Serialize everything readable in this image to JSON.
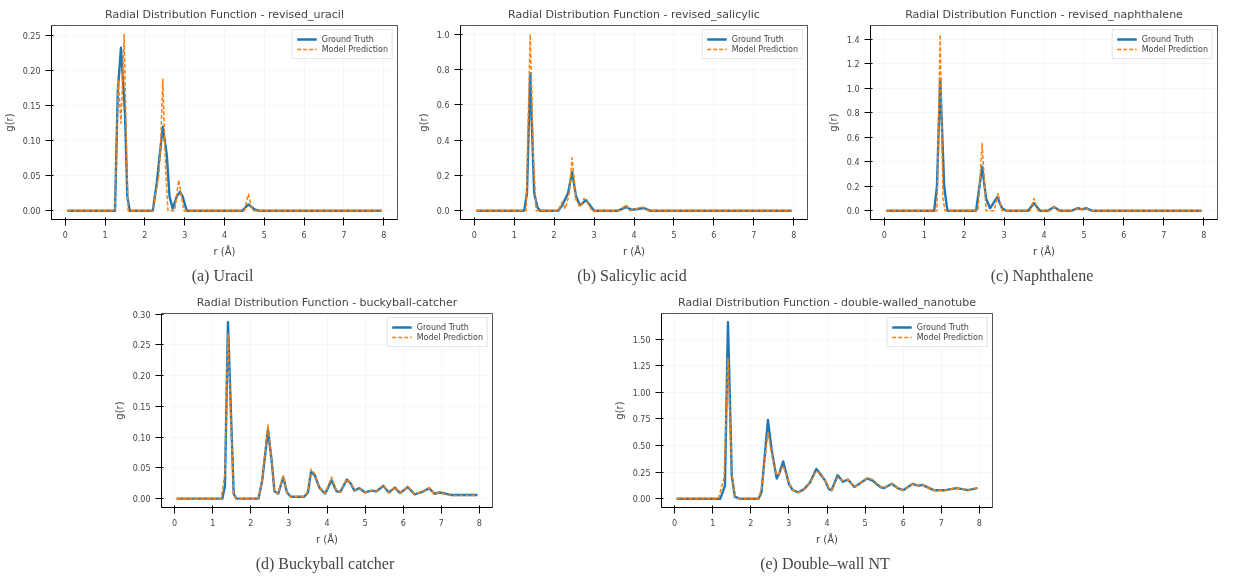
{
  "chart_data": [
    {
      "type": "line",
      "title": "Radial Distribution Function - revised_uracil",
      "xlabel": "r (Å)",
      "ylabel": "g(r)",
      "annotations": [
        "(a)  Uracil"
      ],
      "grid": true,
      "legend": "top right",
      "xlim": [
        -0.345,
        8.345
      ],
      "ylim": [
        -0.0126,
        0.2646
      ],
      "xticks": [
        0,
        1,
        2,
        3,
        4,
        5,
        6,
        7,
        8
      ],
      "yticks": [
        {
          "value": 0,
          "label": "0.00"
        },
        {
          "value": 0.05,
          "label": "0.05"
        },
        {
          "value": 0.1,
          "label": "0.10"
        },
        {
          "value": 0.15,
          "label": "0.15"
        },
        {
          "value": 0.2,
          "label": "0.20"
        },
        {
          "value": 0.25,
          "label": "0.25"
        }
      ],
      "series": [
        {
          "name": "Ground Truth",
          "color": "#1f77b4",
          "line_style": "solid",
          "x": [
            0.05,
            1.25,
            1.32,
            1.4,
            1.5,
            1.56,
            1.62,
            2.2,
            2.3,
            2.45,
            2.55,
            2.62,
            2.7,
            2.8,
            2.88,
            2.95,
            3.05,
            4.45,
            4.6,
            4.75,
            4.85,
            7.95
          ],
          "values": [
            0,
            0,
            0.17,
            0.233,
            0.14,
            0.02,
            0,
            0,
            0.04,
            0.12,
            0.08,
            0.02,
            0.003,
            0.02,
            0.027,
            0.02,
            0,
            0,
            0.009,
            0.002,
            0,
            0
          ]
        },
        {
          "name": "Model Prediction",
          "color": "#ff7f0e",
          "line_style": "dashed",
          "x": [
            0.05,
            1.25,
            1.33,
            1.4,
            1.48,
            1.54,
            1.58,
            2.2,
            2.35,
            2.4,
            2.45,
            2.52,
            2.58,
            2.75,
            2.85,
            2.92,
            2.98,
            4.5,
            4.6,
            4.7,
            7.95
          ],
          "values": [
            0,
            0,
            0.188,
            0.125,
            0.252,
            0.08,
            0,
            0,
            0.05,
            0.1,
            0.188,
            0.06,
            0,
            0,
            0.044,
            0.02,
            0,
            0,
            0.024,
            0,
            0
          ]
        }
      ]
    },
    {
      "type": "line",
      "title": "Radial Distribution Function - revised_salicylic",
      "xlabel": "r (Å)",
      "ylabel": "g(r)",
      "annotations": [
        "(b)  Salicylic acid"
      ],
      "grid": true,
      "legend": "top right",
      "xlim": [
        -0.345,
        8.345
      ],
      "ylim": [
        -0.05,
        1.05
      ],
      "xticks": [
        0,
        1,
        2,
        3,
        4,
        5,
        6,
        7,
        8
      ],
      "yticks": [
        {
          "value": 0,
          "label": "0.0"
        },
        {
          "value": 0.2,
          "label": "0.2"
        },
        {
          "value": 0.4,
          "label": "0.4"
        },
        {
          "value": 0.6,
          "label": "0.6"
        },
        {
          "value": 0.8,
          "label": "0.8"
        },
        {
          "value": 1,
          "label": "1.0"
        }
      ],
      "series": [
        {
          "name": "Ground Truth",
          "color": "#1f77b4",
          "line_style": "solid",
          "x": [
            0.05,
            1.25,
            1.32,
            1.4,
            1.5,
            1.58,
            1.65,
            2.1,
            2.2,
            2.35,
            2.45,
            2.55,
            2.65,
            2.8,
            2.9,
            3.0,
            3.6,
            3.8,
            3.95,
            4.25,
            4.4,
            7.95
          ],
          "values": [
            0,
            0,
            0.1,
            0.78,
            0.1,
            0.02,
            0,
            0,
            0.03,
            0.1,
            0.22,
            0.08,
            0.03,
            0.06,
            0.03,
            0,
            0,
            0.02,
            0.005,
            0.015,
            0,
            0
          ]
        },
        {
          "name": "Model Prediction",
          "color": "#ff7f0e",
          "line_style": "dashed",
          "x": [
            0.05,
            1.3,
            1.4,
            1.48,
            1.55,
            2.1,
            2.2,
            2.28,
            2.38,
            2.45,
            2.55,
            2.65,
            2.75,
            2.85,
            2.95,
            3.65,
            3.8,
            3.9,
            4.2,
            4.35,
            7.95
          ],
          "values": [
            0,
            0,
            1.0,
            0.3,
            0,
            0,
            0.05,
            0.01,
            0.1,
            0.3,
            0.06,
            0.02,
            0.07,
            0.04,
            0,
            0,
            0.035,
            0,
            0.02,
            0,
            0
          ]
        }
      ]
    },
    {
      "type": "line",
      "title": "Radial Distribution Function - revised_naphthalene",
      "xlabel": "r (Å)",
      "ylabel": "g(r)",
      "annotations": [
        "(c)  Naphthalene"
      ],
      "grid": true,
      "legend": "top right",
      "xlim": [
        -0.345,
        8.345
      ],
      "ylim": [
        -0.072,
        1.512
      ],
      "xticks": [
        0,
        1,
        2,
        3,
        4,
        5,
        6,
        7,
        8
      ],
      "yticks": [
        {
          "value": 0,
          "label": "0.0"
        },
        {
          "value": 0.2,
          "label": "0.2"
        },
        {
          "value": 0.4,
          "label": "0.4"
        },
        {
          "value": 0.6,
          "label": "0.6"
        },
        {
          "value": 0.8,
          "label": "0.8"
        },
        {
          "value": 1,
          "label": "1.0"
        },
        {
          "value": 1.2,
          "label": "1.2"
        },
        {
          "value": 1.4,
          "label": "1.4"
        }
      ],
      "series": [
        {
          "name": "Ground Truth",
          "color": "#1f77b4",
          "line_style": "solid",
          "x": [
            0.05,
            1.25,
            1.32,
            1.4,
            1.5,
            1.58,
            2.3,
            2.45,
            2.55,
            2.65,
            2.83,
            2.95,
            3.05,
            3.6,
            3.75,
            3.9,
            4.1,
            4.25,
            4.4,
            4.7,
            4.85,
            4.95,
            5.05,
            5.2,
            7.95
          ],
          "values": [
            0,
            0,
            0.2,
            1.08,
            0.2,
            0,
            0,
            0.36,
            0.1,
            0.02,
            0.11,
            0.02,
            0,
            0,
            0.06,
            0,
            0,
            0.03,
            0,
            0,
            0.02,
            0.01,
            0.02,
            0,
            0
          ]
        },
        {
          "name": "Model Prediction",
          "color": "#ff7f0e",
          "line_style": "dashed",
          "x": [
            0.05,
            1.32,
            1.4,
            1.47,
            1.52,
            2.35,
            2.45,
            2.55,
            2.75,
            2.85,
            2.95,
            3.65,
            3.75,
            3.85,
            4.15,
            4.25,
            4.35,
            4.75,
            4.85,
            4.95,
            5.05,
            5.15,
            7.95
          ],
          "values": [
            0,
            0,
            1.44,
            0.1,
            0,
            0,
            0.55,
            0,
            0,
            0.14,
            0,
            0,
            0.1,
            0,
            0,
            0.03,
            0,
            0,
            0.02,
            0.01,
            0.02,
            0,
            0
          ]
        }
      ]
    },
    {
      "type": "line",
      "title": "Radial Distribution Function - buckyball-catcher",
      "xlabel": "r (Å)",
      "ylabel": "g(r)",
      "annotations": [
        "(d)  Buckyball catcher"
      ],
      "grid": true,
      "legend": "top right",
      "xlim": [
        -0.345,
        8.345
      ],
      "ylim": [
        -0.0144,
        0.301
      ],
      "xticks": [
        0,
        1,
        2,
        3,
        4,
        5,
        6,
        7,
        8
      ],
      "yticks": [
        {
          "value": 0,
          "label": "0.00"
        },
        {
          "value": 0.05,
          "label": "0.05"
        },
        {
          "value": 0.1,
          "label": "0.10"
        },
        {
          "value": 0.15,
          "label": "0.15"
        },
        {
          "value": 0.2,
          "label": "0.20"
        },
        {
          "value": 0.25,
          "label": "0.25"
        },
        {
          "value": 0.3,
          "label": "0.30"
        }
      ],
      "series": [
        {
          "name": "Ground Truth",
          "color": "#1f77b4",
          "line_style": "solid",
          "x": [
            0.05,
            1.25,
            1.32,
            1.4,
            1.5,
            1.55,
            1.62,
            2.2,
            2.3,
            2.45,
            2.55,
            2.62,
            2.72,
            2.85,
            2.95,
            3.05,
            3.4,
            3.5,
            3.58,
            3.68,
            3.8,
            3.95,
            4.12,
            4.25,
            4.35,
            4.52,
            4.62,
            4.72,
            4.85,
            5.0,
            5.15,
            5.3,
            5.48,
            5.62,
            5.78,
            5.92,
            6.12,
            6.3,
            6.5,
            6.68,
            6.82,
            6.95,
            7.05,
            7.25,
            7.95
          ],
          "values": [
            0,
            0,
            0.02,
            0.287,
            0.1,
            0.008,
            0,
            0,
            0.03,
            0.112,
            0.06,
            0.012,
            0.008,
            0.035,
            0.01,
            0.003,
            0.003,
            0.01,
            0.044,
            0.038,
            0.018,
            0.008,
            0.03,
            0.012,
            0.011,
            0.031,
            0.025,
            0.013,
            0.017,
            0.01,
            0.013,
            0.012,
            0.021,
            0.01,
            0.018,
            0.009,
            0.019,
            0.007,
            0.011,
            0.017,
            0.008,
            0.01,
            0.009,
            0.006,
            0.006
          ]
        },
        {
          "name": "Model Prediction",
          "color": "#ff7f0e",
          "line_style": "dashed",
          "x": [
            0.05,
            1.22,
            1.32,
            1.4,
            1.5,
            1.55,
            1.62,
            2.2,
            2.3,
            2.45,
            2.55,
            2.62,
            2.72,
            2.85,
            2.95,
            3.05,
            3.4,
            3.5,
            3.58,
            3.68,
            3.8,
            3.95,
            4.12,
            4.25,
            4.35,
            4.52,
            4.62,
            4.72,
            4.85,
            5.0,
            5.15,
            5.3,
            5.48,
            5.62,
            5.78,
            5.92,
            6.12,
            6.3,
            6.5,
            6.68,
            6.82,
            6.95,
            7.05,
            7.25,
            7.95
          ],
          "values": [
            0,
            0,
            0.04,
            0.268,
            0.09,
            0.008,
            0,
            0,
            0.03,
            0.12,
            0.06,
            0.012,
            0.008,
            0.037,
            0.01,
            0.003,
            0.003,
            0.012,
            0.048,
            0.04,
            0.018,
            0.008,
            0.035,
            0.012,
            0.011,
            0.032,
            0.025,
            0.013,
            0.017,
            0.01,
            0.013,
            0.012,
            0.022,
            0.009,
            0.019,
            0.009,
            0.02,
            0.007,
            0.011,
            0.018,
            0.007,
            0.01,
            0.008,
            0.005,
            0.005
          ]
        }
      ]
    },
    {
      "type": "line",
      "title": "Radial Distribution Function - double-walled_nanotube",
      "xlabel": "r (Å)",
      "ylabel": "g(r)",
      "annotations": [
        "(e)  Double–wall NT"
      ],
      "grid": true,
      "legend": "top right",
      "xlim": [
        -0.345,
        8.345
      ],
      "ylim": [
        -0.083,
        1.743
      ],
      "xticks": [
        0,
        1,
        2,
        3,
        4,
        5,
        6,
        7,
        8
      ],
      "yticks": [
        {
          "value": 0,
          "label": "0.00"
        },
        {
          "value": 0.25,
          "label": "0.25"
        },
        {
          "value": 0.5,
          "label": "0.50"
        },
        {
          "value": 0.75,
          "label": "0.75"
        },
        {
          "value": 1,
          "label": "1.00"
        },
        {
          "value": 1.25,
          "label": "1.25"
        },
        {
          "value": 1.5,
          "label": "1.50"
        }
      ],
      "series": [
        {
          "name": "Ground Truth",
          "color": "#1f77b4",
          "line_style": "solid",
          "x": [
            0.05,
            1.2,
            1.32,
            1.4,
            1.5,
            1.58,
            1.7,
            2.2,
            2.28,
            2.45,
            2.55,
            2.68,
            2.75,
            2.85,
            3.0,
            3.1,
            3.25,
            3.4,
            3.55,
            3.72,
            3.85,
            3.95,
            4.05,
            4.12,
            4.28,
            4.42,
            4.55,
            4.72,
            4.85,
            5.05,
            5.2,
            5.4,
            5.5,
            5.7,
            5.85,
            6.0,
            6.25,
            6.4,
            6.5,
            6.8,
            7.1,
            7.4,
            7.7,
            7.95
          ],
          "values": [
            0,
            0,
            0.12,
            1.66,
            0.22,
            0.02,
            0,
            0,
            0.06,
            0.74,
            0.45,
            0.19,
            0.24,
            0.35,
            0.14,
            0.08,
            0.06,
            0.09,
            0.15,
            0.28,
            0.22,
            0.17,
            0.09,
            0.08,
            0.22,
            0.16,
            0.18,
            0.11,
            0.14,
            0.19,
            0.17,
            0.11,
            0.1,
            0.14,
            0.1,
            0.08,
            0.14,
            0.12,
            0.13,
            0.08,
            0.08,
            0.1,
            0.08,
            0.1
          ]
        },
        {
          "name": "Model Prediction",
          "color": "#ff7f0e",
          "line_style": "dashed",
          "x": [
            0.05,
            1.15,
            1.3,
            1.4,
            1.5,
            1.58,
            1.7,
            2.2,
            2.28,
            2.45,
            2.55,
            2.68,
            2.75,
            2.85,
            3.0,
            3.1,
            3.25,
            3.4,
            3.55,
            3.72,
            3.85,
            3.95,
            4.05,
            4.12,
            4.28,
            4.42,
            4.55,
            4.72,
            4.85,
            5.05,
            5.2,
            5.4,
            5.5,
            5.7,
            5.85,
            6.0,
            6.25,
            6.4,
            6.5,
            6.8,
            7.1,
            7.4,
            7.7,
            7.95
          ],
          "values": [
            0,
            0,
            0.2,
            1.32,
            0.25,
            0.03,
            0,
            0,
            0.1,
            0.62,
            0.42,
            0.22,
            0.24,
            0.31,
            0.15,
            0.08,
            0.06,
            0.09,
            0.15,
            0.26,
            0.23,
            0.17,
            0.1,
            0.08,
            0.2,
            0.17,
            0.18,
            0.11,
            0.14,
            0.19,
            0.18,
            0.11,
            0.1,
            0.14,
            0.1,
            0.08,
            0.14,
            0.12,
            0.13,
            0.08,
            0.08,
            0.1,
            0.08,
            0.1
          ]
        }
      ]
    }
  ]
}
